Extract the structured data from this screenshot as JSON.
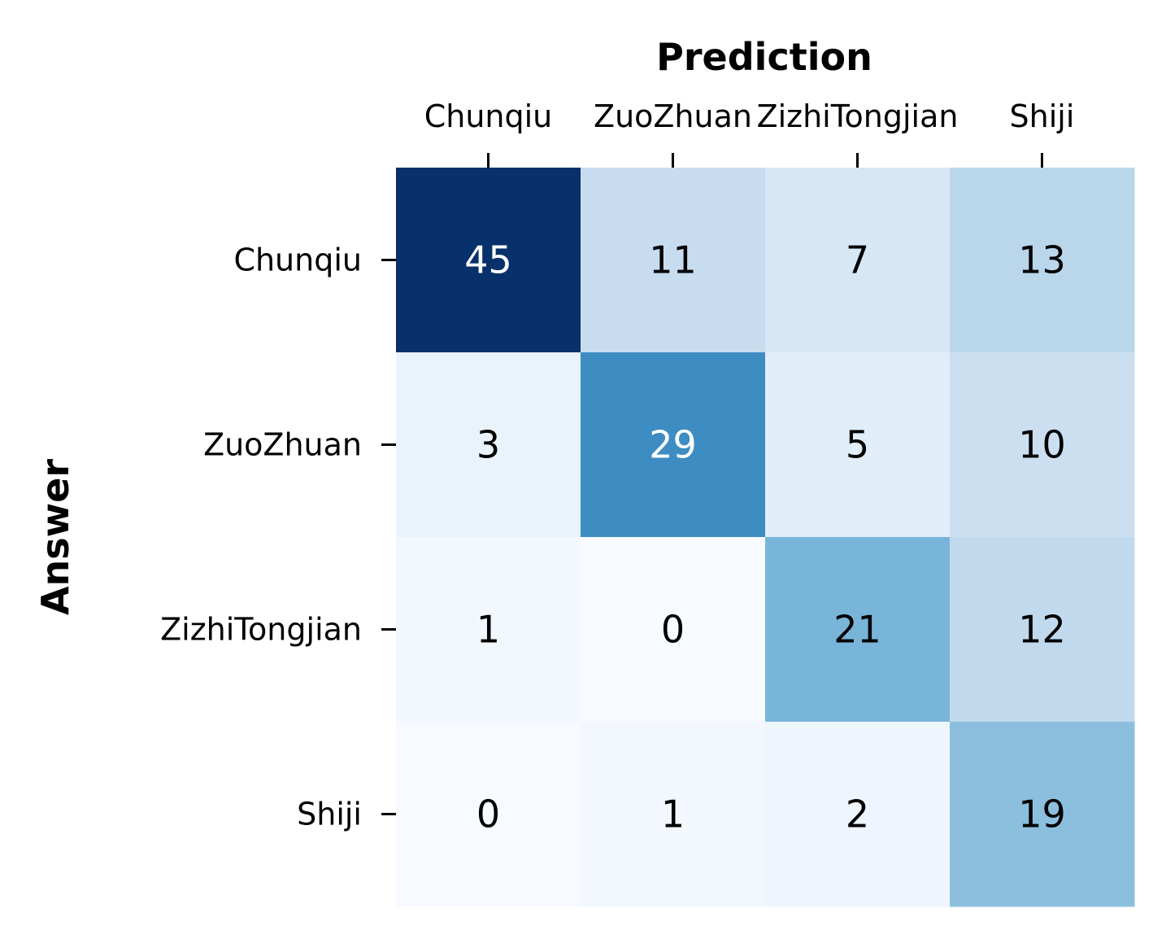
{
  "chart_data": {
    "type": "heatmap",
    "xlabel": "Prediction",
    "ylabel": "Answer",
    "x_categories": [
      "Chunqiu",
      "ZuoZhuan",
      "ZizhiTongjian",
      "Shiji"
    ],
    "y_categories": [
      "Chunqiu",
      "ZuoZhuan",
      "ZizhiTongjian",
      "Shiji"
    ],
    "values": [
      [
        45,
        11,
        7,
        13
      ],
      [
        3,
        29,
        5,
        10
      ],
      [
        1,
        0,
        21,
        12
      ],
      [
        0,
        1,
        2,
        19
      ]
    ],
    "colormap": "Blues",
    "x_axis_position": "top",
    "colorbar": false,
    "annotations": true,
    "colors": {
      "scale": [
        "#f7fbff",
        "#deebf7",
        "#c6dbef",
        "#9ecae1",
        "#6baed6",
        "#4292c6",
        "#2171b5",
        "#08519c",
        "#08306b"
      ],
      "text_dark": "#000000",
      "text_light": "#ffffff"
    }
  }
}
